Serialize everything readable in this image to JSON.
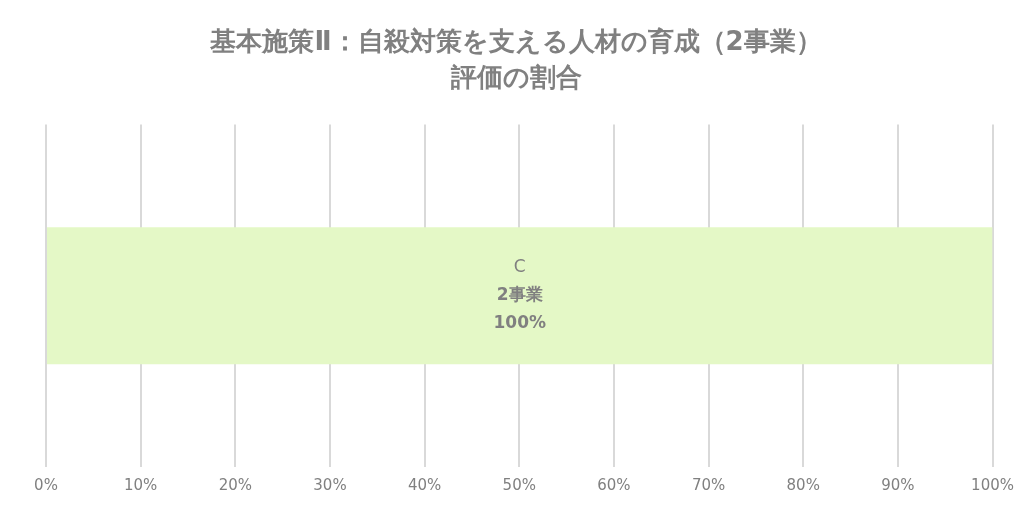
{
  "chart_data": {
    "type": "bar",
    "orientation": "horizontal",
    "title": "基本施策Ⅱ：自殺対策を支える人材の育成（2事業）",
    "subtitle": "評価の割合",
    "categories": [
      null
    ],
    "series": [
      {
        "name": "C",
        "color": "#e4f8c6",
        "values": [
          100
        ],
        "value_labels": [
          "2事業\n100%"
        ]
      }
    ],
    "xlim": [
      0,
      100
    ],
    "xticks": [
      {
        "value": 0,
        "label": "0%"
      },
      {
        "value": 10,
        "label": "10%"
      },
      {
        "value": 20,
        "label": "20%"
      },
      {
        "value": 30,
        "label": "30%"
      },
      {
        "value": 40,
        "label": "40%"
      },
      {
        "value": 50,
        "label": "50%"
      },
      {
        "value": 60,
        "label": "60%"
      },
      {
        "value": 70,
        "label": "70%"
      },
      {
        "value": 80,
        "label": "80%"
      },
      {
        "value": 90,
        "label": "90%"
      },
      {
        "value": 100,
        "label": "100%"
      }
    ],
    "grid": "x",
    "legend": false
  }
}
